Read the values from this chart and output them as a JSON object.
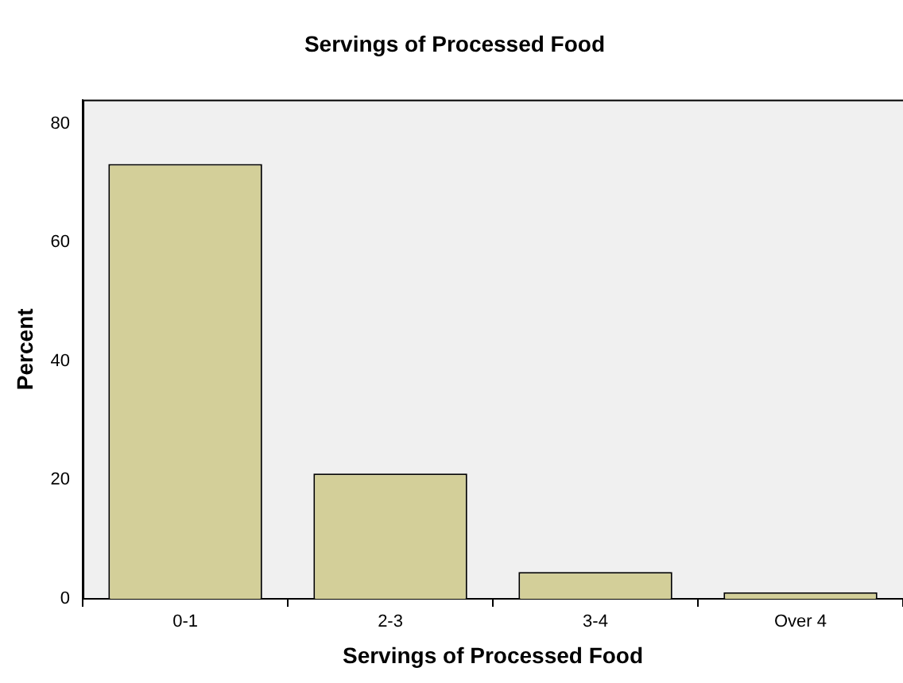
{
  "chart_data": {
    "type": "bar",
    "title": "Servings of Processed Food",
    "xlabel": "Servings of Processed Food",
    "ylabel": "Percent",
    "categories": [
      "0-1",
      "2-3",
      "3-4",
      "Over 4"
    ],
    "values": [
      73.2,
      21.1,
      4.5,
      1.1
    ],
    "color": "#d3cf99",
    "ylim": [
      0,
      84
    ],
    "yticks": [
      0,
      20,
      40,
      60,
      80
    ],
    "grid": false,
    "legend": false
  }
}
